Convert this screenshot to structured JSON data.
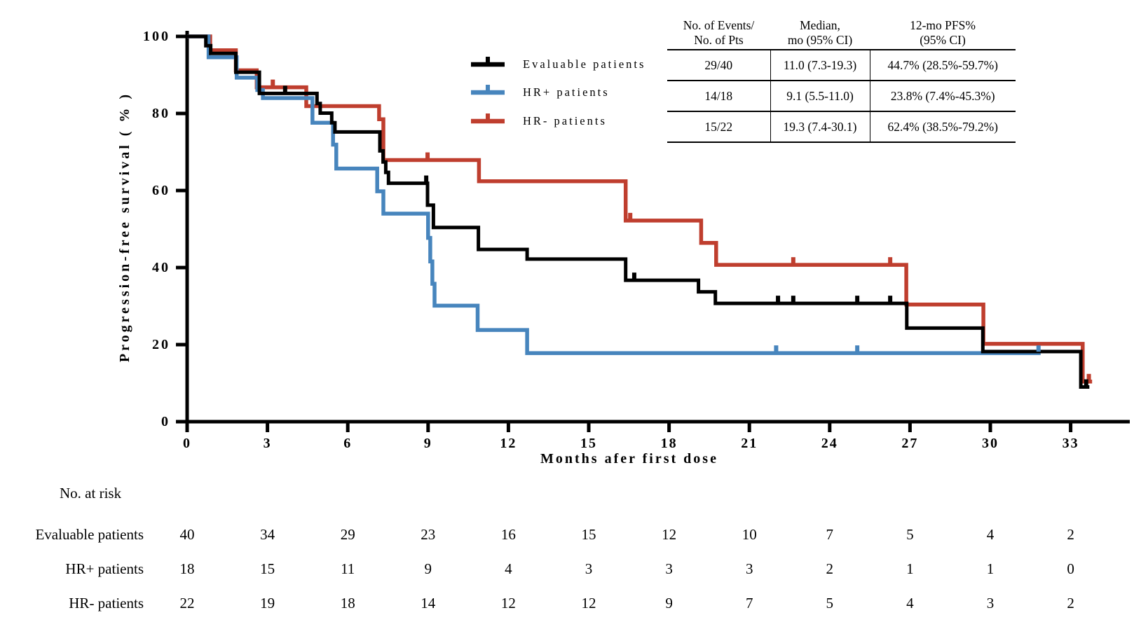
{
  "chart_data": {
    "type": "line",
    "subtype": "kaplan_meier_step",
    "title": "",
    "xlabel": "Months afer first dose",
    "ylabel": "Progression-free survival ( % )",
    "xlim": [
      0,
      35.5
    ],
    "ylim": [
      0,
      100
    ],
    "x_ticks": [
      0,
      3,
      6,
      9,
      12,
      15,
      18,
      21,
      24,
      27,
      30,
      33
    ],
    "y_ticks": [
      0,
      20,
      40,
      60,
      80,
      100
    ],
    "grid": false,
    "legend_position": "upper-center-left-of-stats-table",
    "series": [
      {
        "name": "Evaluable patients",
        "color": "#000000",
        "points": [
          [
            0,
            100
          ],
          [
            0.7,
            100
          ],
          [
            0.7,
            97.6
          ],
          [
            0.88,
            97.6
          ],
          [
            0.88,
            95.6
          ],
          [
            1.82,
            95.6
          ],
          [
            1.82,
            90.7
          ],
          [
            2.7,
            90.7
          ],
          [
            2.7,
            85.2
          ],
          [
            4.85,
            85.2
          ],
          [
            4.85,
            82.6
          ],
          [
            4.97,
            82.6
          ],
          [
            4.97,
            80.1
          ],
          [
            5.4,
            80.1
          ],
          [
            5.4,
            77.6
          ],
          [
            5.52,
            77.6
          ],
          [
            5.52,
            75.2
          ],
          [
            7.2,
            75.2
          ],
          [
            7.2,
            70.3
          ],
          [
            7.32,
            70.3
          ],
          [
            7.32,
            67.4
          ],
          [
            7.42,
            67.4
          ],
          [
            7.42,
            64.7
          ],
          [
            7.52,
            64.7
          ],
          [
            7.52,
            61.9
          ],
          [
            8.98,
            61.9
          ],
          [
            8.98,
            56.2
          ],
          [
            9.2,
            56.2
          ],
          [
            9.2,
            50.4
          ],
          [
            10.88,
            50.4
          ],
          [
            10.88,
            44.7
          ],
          [
            12.7,
            44.7
          ],
          [
            12.7,
            42.2
          ],
          [
            16.38,
            42.2
          ],
          [
            16.38,
            36.7
          ],
          [
            19.1,
            36.7
          ],
          [
            19.1,
            33.7
          ],
          [
            19.73,
            33.7
          ],
          [
            19.73,
            30.7
          ],
          [
            26.88,
            30.7
          ],
          [
            26.88,
            24.3
          ],
          [
            29.72,
            24.3
          ],
          [
            29.72,
            18.2
          ],
          [
            33.38,
            18.2
          ],
          [
            33.38,
            9.0
          ],
          [
            33.7,
            9.0
          ]
        ],
        "censor_ticks": [
          [
            3.66,
            85.2
          ],
          [
            8.93,
            61.9
          ],
          [
            16.7,
            36.7
          ],
          [
            22.07,
            30.7
          ],
          [
            22.64,
            30.7
          ],
          [
            25.03,
            30.7
          ],
          [
            26.26,
            30.7
          ],
          [
            33.58,
            9.0
          ]
        ]
      },
      {
        "name": "HR+ patients",
        "color": "#4785BD",
        "points": [
          [
            0,
            100
          ],
          [
            0.8,
            100
          ],
          [
            0.8,
            94.6
          ],
          [
            1.85,
            94.6
          ],
          [
            1.85,
            89.3
          ],
          [
            2.62,
            89.3
          ],
          [
            2.62,
            86.1
          ],
          [
            2.83,
            86.1
          ],
          [
            2.83,
            84.0
          ],
          [
            4.68,
            84.0
          ],
          [
            4.68,
            77.6
          ],
          [
            5.45,
            77.6
          ],
          [
            5.45,
            71.9
          ],
          [
            5.57,
            71.9
          ],
          [
            5.57,
            65.7
          ],
          [
            7.1,
            65.7
          ],
          [
            7.1,
            59.8
          ],
          [
            7.33,
            59.8
          ],
          [
            7.33,
            54.0
          ],
          [
            9.0,
            54.0
          ],
          [
            9.0,
            47.7
          ],
          [
            9.08,
            47.7
          ],
          [
            9.08,
            41.6
          ],
          [
            9.16,
            41.6
          ],
          [
            9.16,
            35.8
          ],
          [
            9.24,
            35.8
          ],
          [
            9.24,
            30.1
          ],
          [
            10.85,
            30.1
          ],
          [
            10.85,
            23.8
          ],
          [
            12.7,
            23.8
          ],
          [
            12.7,
            17.8
          ],
          [
            31.88,
            17.8
          ]
        ],
        "censor_ticks": [
          [
            22.0,
            17.8
          ],
          [
            25.03,
            17.8
          ],
          [
            31.8,
            17.8
          ]
        ]
      },
      {
        "name": "HR- patients",
        "color": "#BF3E2E",
        "points": [
          [
            0,
            100
          ],
          [
            0.86,
            100
          ],
          [
            0.86,
            96.4
          ],
          [
            1.82,
            96.4
          ],
          [
            1.82,
            91.2
          ],
          [
            2.6,
            91.2
          ],
          [
            2.6,
            86.8
          ],
          [
            4.45,
            86.8
          ],
          [
            4.45,
            81.9
          ],
          [
            7.17,
            81.9
          ],
          [
            7.17,
            78.5
          ],
          [
            7.33,
            78.5
          ],
          [
            7.33,
            67.9
          ],
          [
            10.9,
            67.9
          ],
          [
            10.9,
            62.4
          ],
          [
            16.38,
            62.4
          ],
          [
            16.38,
            52.2
          ],
          [
            19.2,
            52.2
          ],
          [
            19.2,
            46.4
          ],
          [
            19.76,
            46.4
          ],
          [
            19.76,
            40.7
          ],
          [
            26.86,
            40.7
          ],
          [
            26.86,
            30.4
          ],
          [
            29.74,
            30.4
          ],
          [
            29.74,
            20.2
          ],
          [
            33.45,
            20.2
          ],
          [
            33.45,
            10.4
          ],
          [
            33.8,
            10.4
          ]
        ],
        "censor_ticks": [
          [
            3.2,
            86.8
          ],
          [
            8.98,
            67.9
          ],
          [
            16.55,
            52.2
          ],
          [
            22.64,
            40.7
          ],
          [
            26.26,
            40.7
          ],
          [
            33.68,
            10.4
          ]
        ]
      }
    ]
  },
  "stats_table": {
    "headers": [
      [
        "No. of Events/",
        "No. of Pts"
      ],
      [
        "Median,",
        "mo (95% CI)"
      ],
      [
        "12-mo PFS%",
        "(95% CI)"
      ]
    ],
    "rows": [
      [
        "29/40",
        "11.0 (7.3-19.3)",
        "44.7% (28.5%-59.7%)"
      ],
      [
        "14/18",
        "9.1 (5.5-11.0)",
        "23.8% (7.4%-45.3%)"
      ],
      [
        "15/22",
        "19.3 (7.4-30.1)",
        "62.4% (38.5%-79.2%)"
      ]
    ]
  },
  "risk_table": {
    "title": "No. at risk",
    "months": [
      0,
      3,
      6,
      9,
      12,
      15,
      18,
      21,
      24,
      27,
      30,
      33
    ],
    "rows": [
      {
        "label": "Evaluable patients",
        "values": [
          40,
          34,
          29,
          23,
          16,
          15,
          12,
          10,
          7,
          5,
          4,
          2
        ]
      },
      {
        "label": "HR+ patients",
        "values": [
          18,
          15,
          11,
          9,
          4,
          3,
          3,
          3,
          2,
          1,
          1,
          0
        ]
      },
      {
        "label": "HR- patients",
        "values": [
          22,
          19,
          18,
          14,
          12,
          12,
          9,
          7,
          5,
          4,
          3,
          2
        ]
      }
    ]
  }
}
